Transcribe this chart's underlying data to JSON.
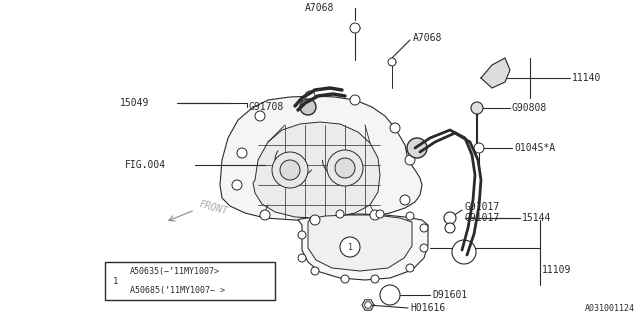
{
  "bg_color": "#ffffff",
  "line_color": "#2a2a2a",
  "fig_number": "A031001124",
  "legend_rows": [
    "A50635(−’11MY1007>",
    "A50685(’11MY1007− >"
  ]
}
